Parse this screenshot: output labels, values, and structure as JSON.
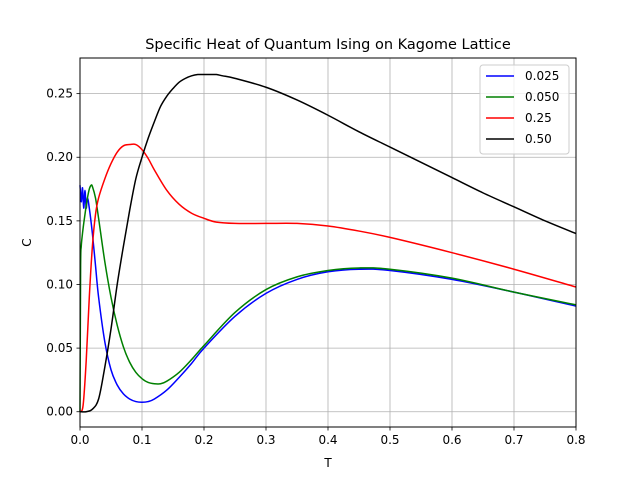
{
  "chart_data": {
    "type": "line",
    "title": "Specific Heat of Quantum Ising on Kagome Lattice",
    "xlabel": "T",
    "ylabel": "C",
    "xlim": [
      0,
      0.8
    ],
    "ylim": [
      -0.012,
      0.278
    ],
    "xticks": [
      0.0,
      0.1,
      0.2,
      0.3,
      0.4,
      0.5,
      0.6,
      0.7,
      0.8
    ],
    "xtick_labels": [
      "0.0",
      "0.1",
      "0.2",
      "0.3",
      "0.4",
      "0.5",
      "0.6",
      "0.7",
      "0.8"
    ],
    "yticks": [
      0.0,
      0.05,
      0.1,
      0.15,
      0.2,
      0.25
    ],
    "ytick_labels": [
      "0.00",
      "0.05",
      "0.10",
      "0.15",
      "0.20",
      "0.25"
    ],
    "grid": true,
    "legend_position": "top-right",
    "series": [
      {
        "name": "0.025",
        "color": "#0000ff",
        "x": [
          0.0,
          0.002,
          0.004,
          0.006,
          0.008,
          0.01,
          0.012,
          0.015,
          0.02,
          0.025,
          0.03,
          0.04,
          0.05,
          0.06,
          0.07,
          0.08,
          0.09,
          0.1,
          0.11,
          0.12,
          0.14,
          0.16,
          0.18,
          0.2,
          0.25,
          0.3,
          0.35,
          0.4,
          0.45,
          0.5,
          0.6,
          0.7,
          0.8
        ],
        "y": [
          0.178,
          0.165,
          0.176,
          0.16,
          0.174,
          0.16,
          0.168,
          0.16,
          0.14,
          0.115,
          0.09,
          0.055,
          0.033,
          0.021,
          0.014,
          0.01,
          0.008,
          0.0075,
          0.008,
          0.01,
          0.017,
          0.027,
          0.038,
          0.05,
          0.075,
          0.093,
          0.104,
          0.11,
          0.112,
          0.111,
          0.104,
          0.094,
          0.083
        ]
      },
      {
        "name": "0.050",
        "color": "#008000",
        "x": [
          0.0,
          0.001,
          0.002,
          0.004,
          0.006,
          0.008,
          0.01,
          0.012,
          0.015,
          0.018,
          0.02,
          0.025,
          0.03,
          0.04,
          0.05,
          0.06,
          0.07,
          0.08,
          0.09,
          0.1,
          0.11,
          0.12,
          0.13,
          0.14,
          0.16,
          0.18,
          0.2,
          0.25,
          0.3,
          0.35,
          0.4,
          0.45,
          0.5,
          0.6,
          0.7,
          0.8
        ],
        "y": [
          0.0,
          0.115,
          0.13,
          0.14,
          0.148,
          0.155,
          0.162,
          0.168,
          0.175,
          0.178,
          0.177,
          0.168,
          0.152,
          0.118,
          0.09,
          0.068,
          0.051,
          0.039,
          0.031,
          0.026,
          0.023,
          0.022,
          0.022,
          0.024,
          0.031,
          0.041,
          0.052,
          0.078,
          0.096,
          0.106,
          0.111,
          0.113,
          0.112,
          0.105,
          0.094,
          0.084
        ]
      },
      {
        "name": "0.25",
        "color": "#ff0000",
        "x": [
          0.0,
          0.005,
          0.01,
          0.015,
          0.02,
          0.025,
          0.03,
          0.04,
          0.05,
          0.06,
          0.07,
          0.08,
          0.09,
          0.1,
          0.11,
          0.12,
          0.14,
          0.16,
          0.18,
          0.2,
          0.22,
          0.25,
          0.3,
          0.35,
          0.4,
          0.45,
          0.5,
          0.6,
          0.7,
          0.8
        ],
        "y": [
          0.0,
          0.005,
          0.04,
          0.09,
          0.13,
          0.155,
          0.168,
          0.183,
          0.195,
          0.204,
          0.209,
          0.21,
          0.21,
          0.206,
          0.199,
          0.19,
          0.174,
          0.163,
          0.156,
          0.152,
          0.149,
          0.148,
          0.148,
          0.148,
          0.146,
          0.142,
          0.137,
          0.125,
          0.112,
          0.098
        ]
      },
      {
        "name": "0.50",
        "color": "#000000",
        "x": [
          0.0,
          0.01,
          0.02,
          0.03,
          0.04,
          0.05,
          0.06,
          0.07,
          0.08,
          0.09,
          0.1,
          0.11,
          0.12,
          0.13,
          0.14,
          0.15,
          0.16,
          0.17,
          0.18,
          0.19,
          0.2,
          0.21,
          0.22,
          0.23,
          0.25,
          0.3,
          0.35,
          0.4,
          0.45,
          0.5,
          0.55,
          0.6,
          0.65,
          0.7,
          0.75,
          0.8
        ],
        "y": [
          0.0,
          0.0,
          0.002,
          0.01,
          0.035,
          0.065,
          0.1,
          0.13,
          0.158,
          0.183,
          0.2,
          0.215,
          0.228,
          0.24,
          0.248,
          0.254,
          0.259,
          0.262,
          0.264,
          0.265,
          0.265,
          0.265,
          0.265,
          0.264,
          0.262,
          0.255,
          0.245,
          0.233,
          0.22,
          0.208,
          0.196,
          0.184,
          0.172,
          0.161,
          0.15,
          0.14
        ]
      }
    ]
  }
}
